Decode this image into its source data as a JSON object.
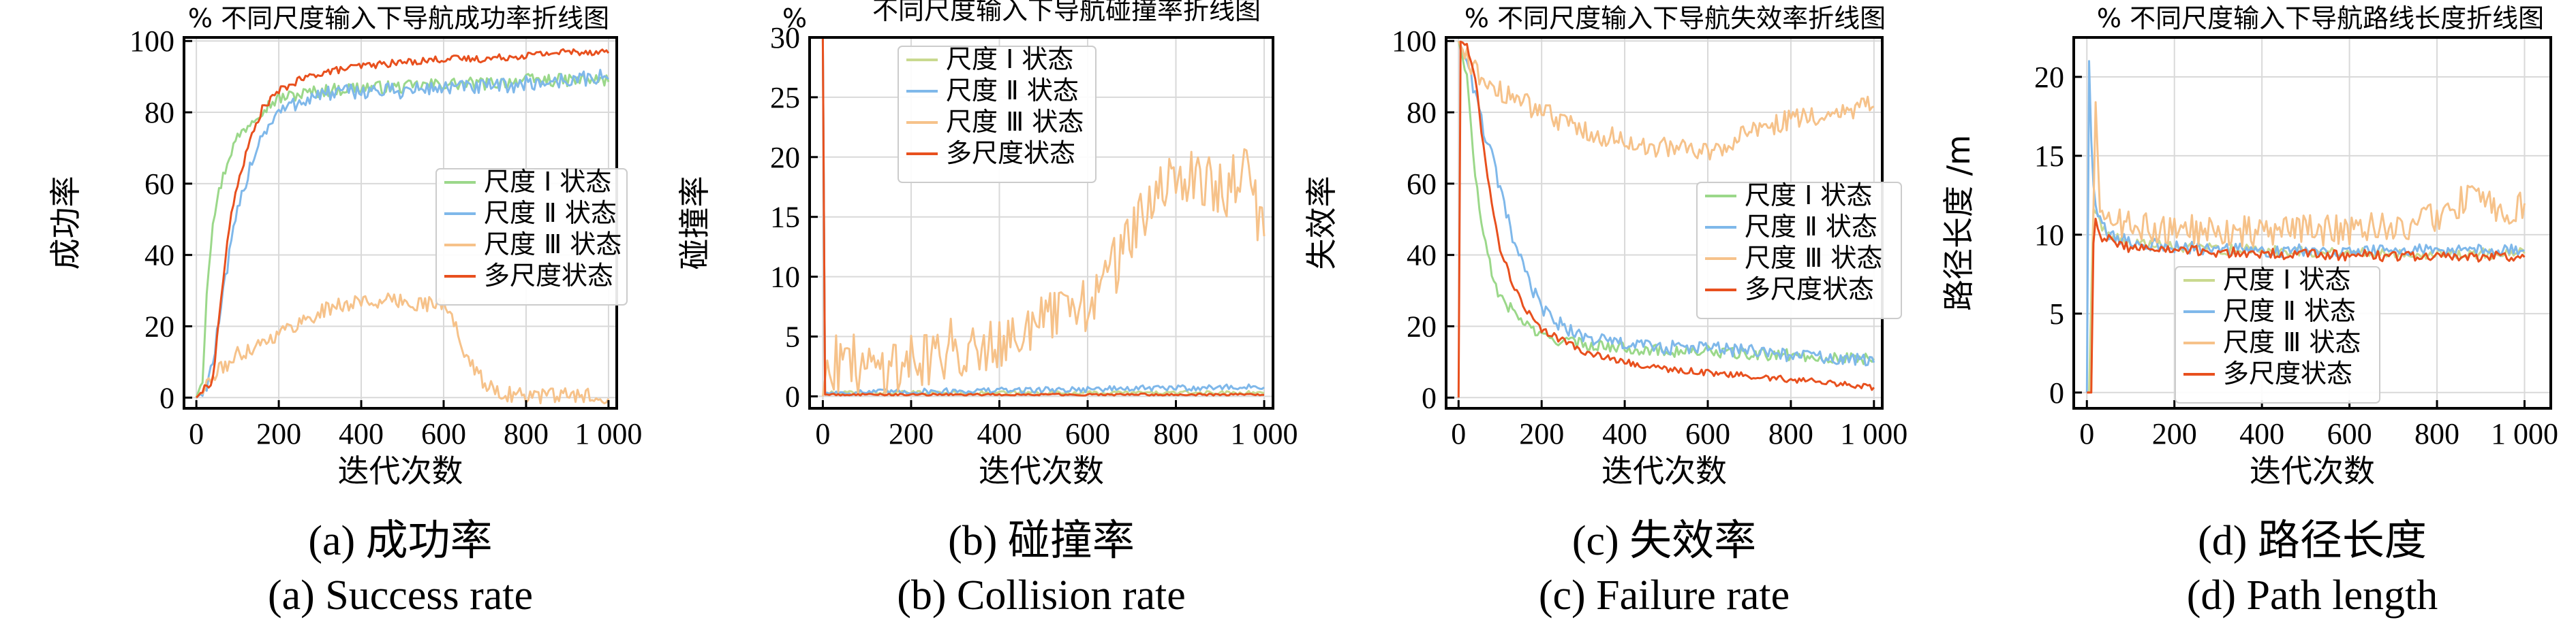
{
  "figure": {
    "panels": [
      "a",
      "b",
      "c",
      "d"
    ]
  },
  "chart_data": [
    {
      "id": "a",
      "type": "line",
      "title": "% 不同尺度输入下导航成功率折线图",
      "xlabel": "迭代次数",
      "ylabel": "成功率",
      "caption_cn": "(a) 成功率",
      "caption_en": "(a) Success rate",
      "xlim": [
        -30,
        1020
      ],
      "ylim": [
        -3,
        101
      ],
      "xticks": [
        0,
        200,
        400,
        600,
        800,
        1000
      ],
      "xtick_labels": [
        "0",
        "200",
        "400",
        "600",
        "800",
        "1 000"
      ],
      "yticks": [
        0,
        20,
        40,
        60,
        80,
        100
      ],
      "ytick_labels": [
        "0",
        "20",
        "40",
        "60",
        "80",
        "100"
      ],
      "grid": true,
      "legend_position": "center-right",
      "series": [
        {
          "name": "尺度 Ⅰ 状态",
          "color": "#9bd88a",
          "noise": 1.8,
          "points": [
            [
              0,
              0
            ],
            [
              15,
              5
            ],
            [
              25,
              30
            ],
            [
              40,
              50
            ],
            [
              60,
              60
            ],
            [
              80,
              68
            ],
            [
              100,
              73
            ],
            [
              150,
              80
            ],
            [
              200,
              84
            ],
            [
              300,
              86
            ],
            [
              400,
              87
            ],
            [
              500,
              87
            ],
            [
              600,
              88
            ],
            [
              700,
              88
            ],
            [
              800,
              89
            ],
            [
              900,
              89
            ],
            [
              1000,
              89
            ]
          ]
        },
        {
          "name": "尺度 Ⅱ 状态",
          "color": "#7fb8ea",
          "noise": 2.2,
          "points": [
            [
              0,
              0
            ],
            [
              20,
              2
            ],
            [
              40,
              10
            ],
            [
              60,
              25
            ],
            [
              80,
              40
            ],
            [
              100,
              52
            ],
            [
              130,
              65
            ],
            [
              160,
              74
            ],
            [
              200,
              80
            ],
            [
              250,
              83
            ],
            [
              300,
              85
            ],
            [
              400,
              86
            ],
            [
              500,
              86
            ],
            [
              600,
              87
            ],
            [
              700,
              87
            ],
            [
              800,
              88
            ],
            [
              900,
              89
            ],
            [
              1000,
              90
            ]
          ]
        },
        {
          "name": "尺度 Ⅲ 状态",
          "color": "#f6c28a",
          "noise": 2.2,
          "points": [
            [
              0,
              0
            ],
            [
              50,
              7
            ],
            [
              100,
              12
            ],
            [
              150,
              15
            ],
            [
              200,
              18
            ],
            [
              300,
              24
            ],
            [
              350,
              26
            ],
            [
              400,
              27
            ],
            [
              500,
              27
            ],
            [
              600,
              26
            ],
            [
              630,
              20
            ],
            [
              660,
              10
            ],
            [
              700,
              4
            ],
            [
              750,
              1
            ],
            [
              800,
              0.5
            ],
            [
              1000,
              0.5
            ]
          ]
        },
        {
          "name": "多尺度状态",
          "color": "#e8501e",
          "noise": 1.0,
          "points": [
            [
              0,
              0
            ],
            [
              40,
              5
            ],
            [
              60,
              28
            ],
            [
              80,
              48
            ],
            [
              100,
              60
            ],
            [
              130,
              72
            ],
            [
              160,
              81
            ],
            [
              200,
              86
            ],
            [
              250,
              89
            ],
            [
              300,
              91
            ],
            [
              400,
              93
            ],
            [
              500,
              94
            ],
            [
              600,
              95
            ],
            [
              700,
              95
            ],
            [
              800,
              96
            ],
            [
              900,
              97
            ],
            [
              1000,
              97
            ]
          ]
        }
      ]
    },
    {
      "id": "b",
      "type": "line",
      "title": "不同尺度输入下导航碰撞率折线图",
      "title_prefix": "%",
      "xlabel": "迭代次数",
      "ylabel": "碰撞率",
      "caption_cn": "(b) 碰撞率",
      "caption_en": "(b) Collision rate",
      "xlim": [
        -30,
        1020
      ],
      "ylim": [
        -1,
        30
      ],
      "xticks": [
        0,
        200,
        400,
        600,
        800,
        1000
      ],
      "xtick_labels": [
        "0",
        "200",
        "400",
        "600",
        "800",
        "1 000"
      ],
      "yticks": [
        0,
        5,
        10,
        15,
        20,
        25,
        30
      ],
      "ytick_labels": [
        "0",
        "5",
        "10",
        "15",
        "20",
        "25",
        "30"
      ],
      "grid": true,
      "legend_position": "top-left",
      "series": [
        {
          "name": "尺度 Ⅰ 状态",
          "color": "#c9d98f",
          "noise": 0.15,
          "points": [
            [
              0,
              30
            ],
            [
              3,
              0.3
            ],
            [
              100,
              0.3
            ],
            [
              500,
              0.3
            ],
            [
              1000,
              0.3
            ]
          ]
        },
        {
          "name": "尺度 Ⅱ 状态",
          "color": "#7fb8ea",
          "noise": 0.25,
          "points": [
            [
              0,
              30
            ],
            [
              3,
              0.3
            ],
            [
              200,
              0.4
            ],
            [
              600,
              0.6
            ],
            [
              1000,
              0.8
            ]
          ]
        },
        {
          "name": "尺度 Ⅲ 状态",
          "color": "#f6c28a",
          "noise": 2.6,
          "points": [
            [
              0,
              0
            ],
            [
              10,
              3
            ],
            [
              100,
              2.5
            ],
            [
              200,
              3
            ],
            [
              300,
              4
            ],
            [
              400,
              5
            ],
            [
              500,
              6
            ],
            [
              600,
              8
            ],
            [
              650,
              10
            ],
            [
              700,
              14
            ],
            [
              750,
              16
            ],
            [
              800,
              18
            ],
            [
              850,
              19
            ],
            [
              900,
              17
            ],
            [
              950,
              19
            ],
            [
              1000,
              14
            ]
          ]
        },
        {
          "name": "多尺度状态",
          "color": "#e8501e",
          "noise": 0.08,
          "points": [
            [
              0,
              30
            ],
            [
              3,
              0.15
            ],
            [
              1000,
              0.15
            ]
          ]
        }
      ]
    },
    {
      "id": "c",
      "type": "line",
      "title": "% 不同尺度输入下导航失效率折线图",
      "xlabel": "迭代次数",
      "ylabel": "失效率",
      "caption_cn": "(c) 失效率",
      "caption_en": "(c) Failure rate",
      "xlim": [
        -30,
        1020
      ],
      "ylim": [
        -3,
        101
      ],
      "xticks": [
        0,
        200,
        400,
        600,
        800,
        1000
      ],
      "xtick_labels": [
        "0",
        "200",
        "400",
        "600",
        "800",
        "1 000"
      ],
      "yticks": [
        0,
        20,
        40,
        60,
        80,
        100
      ],
      "ytick_labels": [
        "0",
        "20",
        "40",
        "60",
        "80",
        "100"
      ],
      "grid": true,
      "legend_position": "center-right",
      "series": [
        {
          "name": "尺度 Ⅰ 状态",
          "color": "#9bd88a",
          "noise": 1.6,
          "points": [
            [
              0,
              100
            ],
            [
              20,
              90
            ],
            [
              40,
              62
            ],
            [
              60,
              45
            ],
            [
              80,
              35
            ],
            [
              100,
              28
            ],
            [
              150,
              22
            ],
            [
              200,
              17
            ],
            [
              300,
              15
            ],
            [
              400,
              14
            ],
            [
              500,
              13
            ],
            [
              600,
              13
            ],
            [
              700,
              12
            ],
            [
              800,
              12
            ],
            [
              900,
              11
            ],
            [
              1000,
              11
            ]
          ]
        },
        {
          "name": "尺度 Ⅱ 状态",
          "color": "#7fb8ea",
          "noise": 2.0,
          "points": [
            [
              0,
              100
            ],
            [
              20,
              95
            ],
            [
              40,
              85
            ],
            [
              60,
              75
            ],
            [
              80,
              68
            ],
            [
              100,
              58
            ],
            [
              130,
              45
            ],
            [
              160,
              35
            ],
            [
              200,
              25
            ],
            [
              250,
              20
            ],
            [
              300,
              17
            ],
            [
              400,
              15
            ],
            [
              500,
              14
            ],
            [
              600,
              14
            ],
            [
              700,
              13
            ],
            [
              800,
              12
            ],
            [
              900,
              11
            ],
            [
              1000,
              10
            ]
          ]
        },
        {
          "name": "尺度 Ⅲ 状态",
          "color": "#f6c28a",
          "noise": 3.0,
          "points": [
            [
              0,
              100
            ],
            [
              20,
              95
            ],
            [
              50,
              90
            ],
            [
              100,
              86
            ],
            [
              200,
              80
            ],
            [
              300,
              75
            ],
            [
              400,
              72
            ],
            [
              500,
              70
            ],
            [
              600,
              69
            ],
            [
              700,
              74
            ],
            [
              800,
              78
            ],
            [
              900,
              80
            ],
            [
              1000,
              82
            ]
          ]
        },
        {
          "name": "多尺度状态",
          "color": "#e8501e",
          "noise": 0.9,
          "points": [
            [
              0,
              0
            ],
            [
              2,
              100
            ],
            [
              20,
              99
            ],
            [
              40,
              90
            ],
            [
              60,
              70
            ],
            [
              80,
              55
            ],
            [
              100,
              42
            ],
            [
              130,
              32
            ],
            [
              160,
              25
            ],
            [
              200,
              19
            ],
            [
              300,
              13
            ],
            [
              400,
              10
            ],
            [
              500,
              8
            ],
            [
              600,
              7
            ],
            [
              700,
              6
            ],
            [
              800,
              5
            ],
            [
              900,
              4
            ],
            [
              1000,
              3
            ]
          ]
        }
      ]
    },
    {
      "id": "d",
      "type": "line",
      "title": "% 不同尺度输入下导航路线长度折线图",
      "xlabel": "迭代次数",
      "ylabel": "路径长度 /m",
      "caption_cn": "(d) 路径长度",
      "caption_en": "(d) Path length",
      "xlim": [
        -30,
        1060
      ],
      "ylim": [
        -1,
        22.5
      ],
      "xticks": [
        0,
        200,
        400,
        600,
        800,
        1000
      ],
      "xtick_labels": [
        "0",
        "200",
        "400",
        "600",
        "800",
        "1 000"
      ],
      "yticks": [
        0,
        5,
        10,
        15,
        20
      ],
      "ytick_labels": [
        "0",
        "5",
        "10",
        "15",
        "20"
      ],
      "grid": true,
      "legend_position": "bottom-center",
      "series": [
        {
          "name": "尺度 Ⅰ 状态",
          "color": "#c9d98f",
          "noise": 0.35,
          "points": [
            [
              0,
              0
            ],
            [
              8,
              0
            ],
            [
              12,
              12
            ],
            [
              25,
              11
            ],
            [
              50,
              10
            ],
            [
              100,
              9.5
            ],
            [
              200,
              9.2
            ],
            [
              400,
              9
            ],
            [
              600,
              8.9
            ],
            [
              800,
              8.8
            ],
            [
              1000,
              8.8
            ]
          ]
        },
        {
          "name": "尺度 Ⅱ 状态",
          "color": "#7fb8ea",
          "noise": 0.4,
          "points": [
            [
              0,
              0
            ],
            [
              5,
              21
            ],
            [
              12,
              14
            ],
            [
              25,
              11
            ],
            [
              50,
              10
            ],
            [
              100,
              9.5
            ],
            [
              200,
              9.2
            ],
            [
              400,
              9
            ],
            [
              600,
              9
            ],
            [
              800,
              9
            ],
            [
              1000,
              9
            ]
          ]
        },
        {
          "name": "尺度 Ⅲ 状态",
          "color": "#f6c28a",
          "noise": 1.0,
          "points": [
            [
              0,
              0
            ],
            [
              10,
              0
            ],
            [
              18,
              19
            ],
            [
              30,
              12
            ],
            [
              60,
              11
            ],
            [
              100,
              10.5
            ],
            [
              200,
              10.3
            ],
            [
              400,
              10.2
            ],
            [
              600,
              10.3
            ],
            [
              700,
              10.5
            ],
            [
              800,
              11
            ],
            [
              850,
              12
            ],
            [
              900,
              13
            ],
            [
              950,
              11
            ],
            [
              1000,
              12
            ]
          ]
        },
        {
          "name": "多尺度状态",
          "color": "#e8501e",
          "noise": 0.35,
          "points": [
            [
              0,
              0
            ],
            [
              10,
              0
            ],
            [
              16,
              11.5
            ],
            [
              30,
              10
            ],
            [
              60,
              9.5
            ],
            [
              100,
              9.2
            ],
            [
              200,
              9
            ],
            [
              400,
              8.8
            ],
            [
              600,
              8.7
            ],
            [
              800,
              8.6
            ],
            [
              1000,
              8.6
            ]
          ]
        }
      ]
    }
  ]
}
